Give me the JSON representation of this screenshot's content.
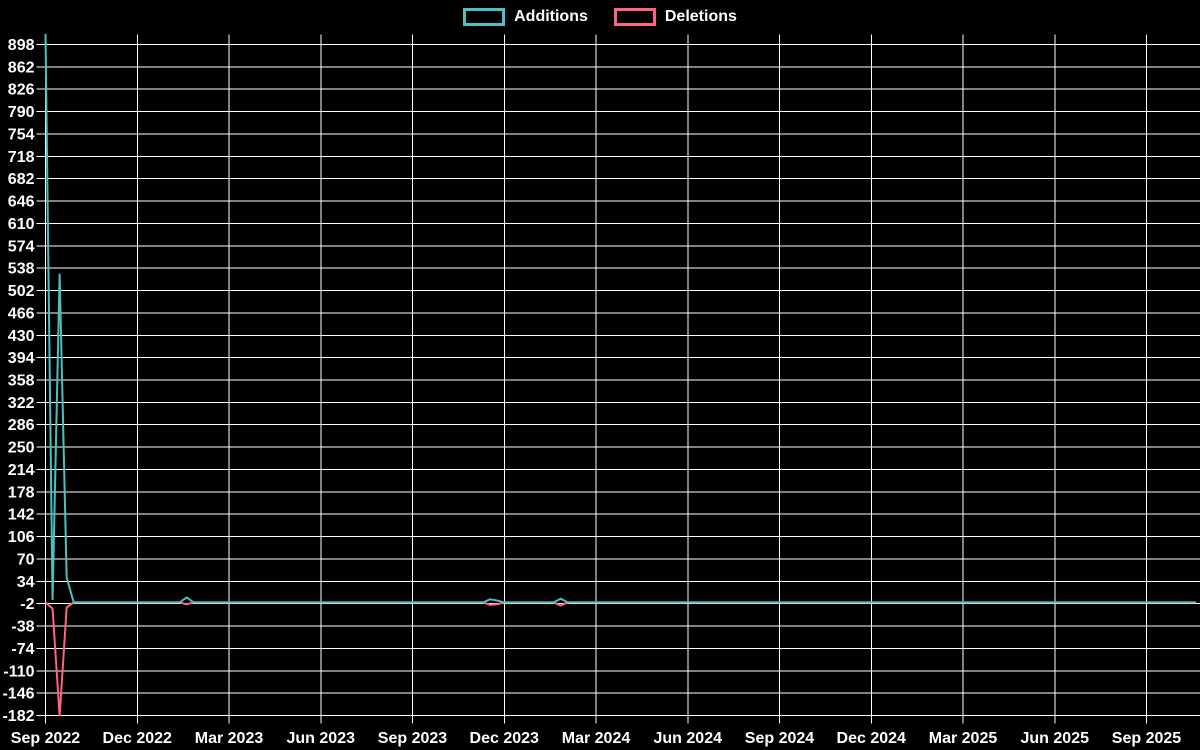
{
  "colors": {
    "background": "#000000",
    "grid": "#ffffff",
    "axis_text": "#ffffff",
    "additions": "#4BC0C0",
    "deletions": "#FF6384"
  },
  "legend": {
    "items": [
      {
        "label": "Additions",
        "color": "#4BC0C0"
      },
      {
        "label": "Deletions",
        "color": "#FF6384"
      }
    ]
  },
  "chart_data": {
    "type": "line",
    "title": "",
    "xlabel": "",
    "ylabel": "",
    "grid": true,
    "legend_position": "top",
    "background": "#000000",
    "x_tick_labels": [
      "Sep 2022",
      "Dec 2022",
      "Mar 2023",
      "Jun 2023",
      "Sep 2023",
      "Dec 2023",
      "Mar 2024",
      "Jun 2024",
      "Sep 2024",
      "Dec 2024",
      "Mar 2025",
      "Jun 2025",
      "Sep 2025"
    ],
    "x_tick_week_indices": [
      0,
      13,
      26,
      39,
      52,
      65,
      78,
      91,
      104,
      117,
      130,
      143,
      156
    ],
    "weeks_total": 164,
    "weeks_per_quarter": 13,
    "y_ticks": [
      898,
      862,
      826,
      790,
      754,
      718,
      682,
      646,
      610,
      574,
      538,
      502,
      466,
      430,
      394,
      358,
      322,
      286,
      250,
      214,
      178,
      142,
      106,
      70,
      34,
      -2,
      -38,
      -74,
      -110,
      -146,
      -182
    ],
    "y_tick_step": 36,
    "ylim": [
      -195,
      915
    ],
    "series": [
      {
        "name": "Additions",
        "color": "#4BC0C0",
        "default": 0,
        "points": {
          "0": 915,
          "1": 4,
          "2": 529,
          "3": 40,
          "20": 8,
          "63": 5,
          "64": 3,
          "73": 6
        }
      },
      {
        "name": "Deletions",
        "color": "#FF6384",
        "default": 0,
        "points": {
          "1": -10,
          "2": -183,
          "3": -8,
          "20": -3,
          "63": -4,
          "64": -3,
          "73": -5
        }
      }
    ]
  }
}
